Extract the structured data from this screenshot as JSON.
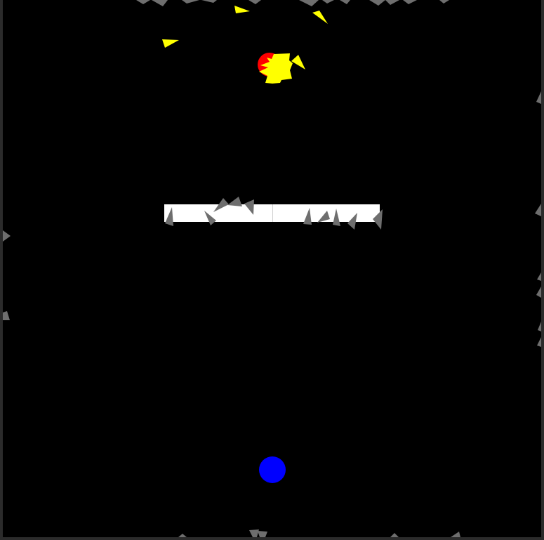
{
  "game": {
    "background_color": "#000000",
    "frame_color": "#2b2b2b",
    "player": {
      "shape": "circle",
      "color": "#0000ff"
    },
    "enemy": {
      "shape": "circle",
      "color": "#ff0000",
      "state": "exploding",
      "explosion_color": "#ffff00"
    },
    "barrier": {
      "color": "#ffffff",
      "segments": 2
    },
    "projectiles": {
      "color": "#ffff00",
      "count": 4
    },
    "debris": {
      "color": "#6e6e6e",
      "icon": "triangle-shard"
    }
  }
}
